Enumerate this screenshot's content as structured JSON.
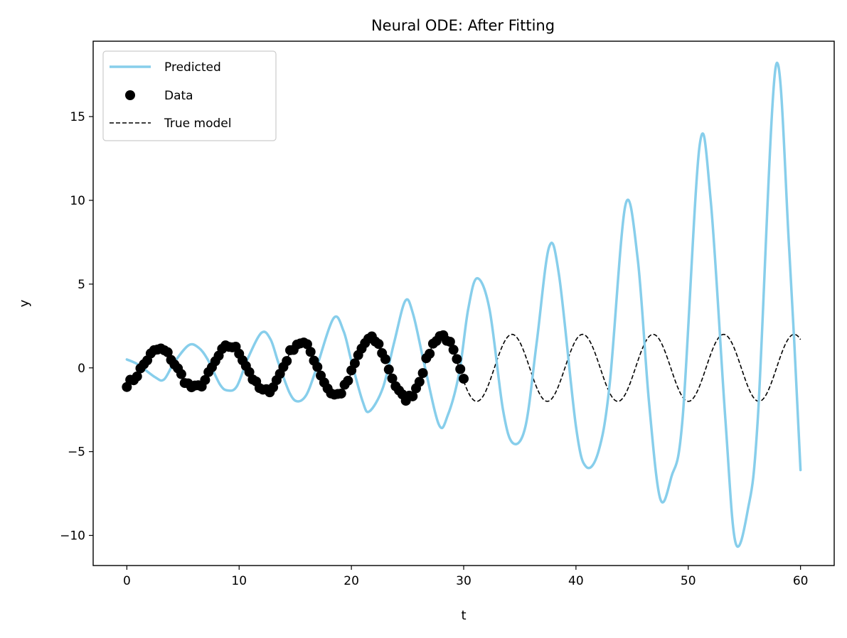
{
  "chart_data": {
    "type": "line",
    "title": "Neural ODE: After Fitting",
    "xlabel": "t",
    "ylabel": "y",
    "xlim": [
      -3,
      63
    ],
    "ylim": [
      -11.8,
      19.5
    ],
    "xticks": [
      0,
      10,
      20,
      30,
      40,
      50,
      60
    ],
    "yticks": [
      -10,
      -5,
      0,
      5,
      10,
      15
    ],
    "ytick_labels": [
      "−10",
      "−5",
      "0",
      "5",
      "10",
      "15"
    ],
    "grid": false,
    "legend_position": "top-left",
    "series": [
      {
        "name": "Predicted",
        "kind": "line",
        "color": "#87CEEB",
        "points": [
          [
            0,
            0.5
          ],
          [
            1,
            0.2
          ],
          [
            2.5,
            -0.55
          ],
          [
            3.3,
            -0.7
          ],
          [
            4.2,
            0.3
          ],
          [
            5.5,
            1.35
          ],
          [
            6.4,
            1.2
          ],
          [
            7.2,
            0.5
          ],
          [
            8.3,
            -1.0
          ],
          [
            9,
            -1.35
          ],
          [
            9.8,
            -1.1
          ],
          [
            10.8,
            0.6
          ],
          [
            12,
            2.1
          ],
          [
            12.8,
            1.7
          ],
          [
            13.5,
            0.3
          ],
          [
            14.5,
            -1.5
          ],
          [
            15.2,
            -2.0
          ],
          [
            16,
            -1.6
          ],
          [
            16.8,
            -0.2
          ],
          [
            18.4,
            2.95
          ],
          [
            19.3,
            2.2
          ],
          [
            20,
            0.4
          ],
          [
            21.0,
            -2.0
          ],
          [
            21.6,
            -2.6
          ],
          [
            22.8,
            -1.2
          ],
          [
            23.8,
            1.5
          ],
          [
            24.8,
            4.0
          ],
          [
            25.5,
            3.2
          ],
          [
            26.5,
            0.2
          ],
          [
            27.8,
            -3.4
          ],
          [
            28.6,
            -2.8
          ],
          [
            29.6,
            -0.3
          ],
          [
            30.4,
            3.5
          ],
          [
            31.2,
            5.35
          ],
          [
            32.3,
            3.5
          ],
          [
            33.5,
            -2.5
          ],
          [
            34.4,
            -4.5
          ],
          [
            35.5,
            -3.5
          ],
          [
            36.5,
            1.5
          ],
          [
            37.6,
            7.2
          ],
          [
            38.5,
            5.5
          ],
          [
            40,
            -3.5
          ],
          [
            40.9,
            -5.9
          ],
          [
            42,
            -5.0
          ],
          [
            43,
            -1.0
          ],
          [
            44.4,
            9.7
          ],
          [
            45.5,
            6.5
          ],
          [
            46.5,
            -2.0
          ],
          [
            47.5,
            -7.8
          ],
          [
            48.5,
            -6.5
          ],
          [
            49.5,
            -3.0
          ],
          [
            51.0,
            13.2
          ],
          [
            52.0,
            10.0
          ],
          [
            53.3,
            -3.0
          ],
          [
            54.2,
            -10.4
          ],
          [
            55.3,
            -8.5
          ],
          [
            56.2,
            -3.0
          ],
          [
            57.8,
            18.0
          ],
          [
            59,
            7.0
          ],
          [
            60,
            -6.1
          ]
        ]
      },
      {
        "name": "Data",
        "kind": "scatter",
        "color": "#000000",
        "marker": "circle"
      },
      {
        "name": "True model",
        "kind": "dashed-line",
        "color": "#000000",
        "model": "2*sin(x - 1.318) with amplitude growing 1 to 2 over t in [0,30], constant 2 after"
      }
    ]
  }
}
